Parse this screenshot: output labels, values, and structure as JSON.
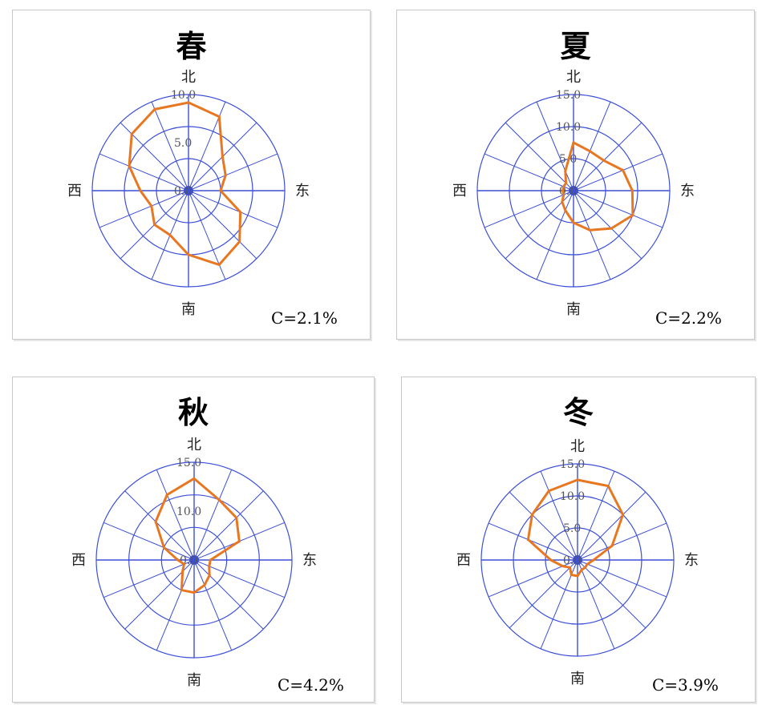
{
  "axis_color": "#3b4fd8",
  "series_color": "#e87722",
  "chart_data": [
    {
      "type": "radar",
      "title": "春",
      "direction_labels": {
        "north": "北",
        "east": "东",
        "south": "南",
        "west": "西"
      },
      "ring_labels": [
        "0.0",
        "5.0",
        "10.0"
      ],
      "rmax": 12,
      "values": [
        11,
        10,
        6,
        5,
        4,
        7,
        9,
        10,
        8,
        6,
        6,
        5,
        6,
        8,
        10,
        11
      ],
      "calm_label": "C=2.1%"
    },
    {
      "type": "radar",
      "title": "夏",
      "direction_labels": {
        "north": "北",
        "east": "东",
        "south": "南",
        "west": "西"
      },
      "ring_labels": [
        "0.0",
        "5.0",
        "10.0",
        "15.0"
      ],
      "rmax": 18,
      "values": [
        9,
        8,
        8,
        10,
        11,
        12,
        10,
        8,
        6,
        4,
        3,
        2,
        2,
        2,
        2,
        4
      ],
      "calm_label": "C=2.2%"
    },
    {
      "type": "radar",
      "title": "秋",
      "direction_labels": {
        "north": "北",
        "east": "东",
        "south": "南",
        "west": "西"
      },
      "ring_labels": [
        "0.0",
        "10.0",
        "15.0"
      ],
      "rmax": 18,
      "values": [
        15,
        12,
        11,
        9,
        3,
        3,
        4,
        5,
        6,
        6,
        3,
        2,
        3,
        6,
        10,
        13
      ],
      "calm_label": "C=4.2%"
    },
    {
      "type": "radar",
      "title": "冬",
      "direction_labels": {
        "north": "北",
        "east": "东",
        "south": "南",
        "west": "西"
      },
      "ring_labels": [
        "0.0",
        "5.0",
        "10.0",
        "15.0"
      ],
      "rmax": 18,
      "values": [
        15,
        15,
        12,
        7,
        3,
        2,
        2,
        2,
        3,
        3,
        2,
        3,
        5,
        10,
        12,
        14
      ],
      "calm_label": "C=3.9%"
    }
  ]
}
